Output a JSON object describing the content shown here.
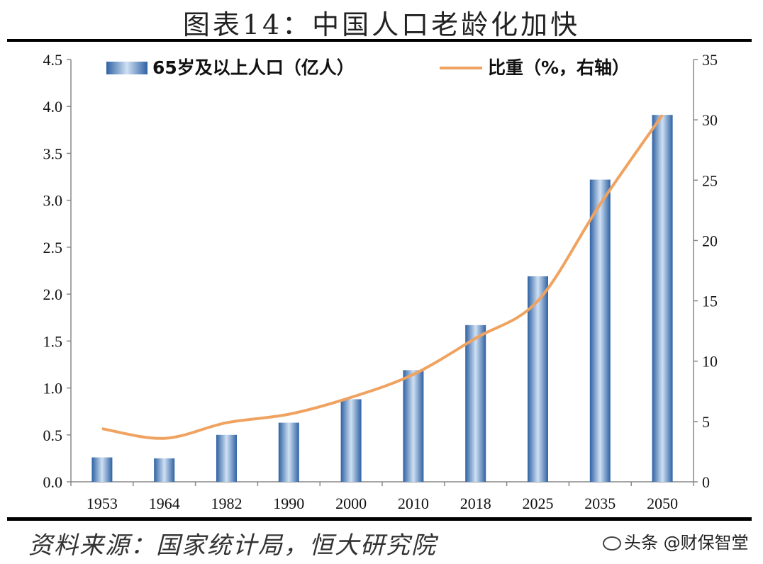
{
  "header": {
    "title": "图表14：中国人口老龄化加快"
  },
  "footer": {
    "source": "资料来源：国家统计局，恒大研究院",
    "watermark": "头条 @财保智堂"
  },
  "colors": {
    "bar_dark": "#2f62a3",
    "bar_light": "#cfe0f3",
    "line": "#f0a360"
  },
  "chart_data": {
    "type": "bar",
    "categories": [
      "1953",
      "1964",
      "1982",
      "1990",
      "2000",
      "2010",
      "2018",
      "2025",
      "2035",
      "2050"
    ],
    "series": [
      {
        "name": "65岁及以上人口（亿人）",
        "type": "bar",
        "axis": "left",
        "values": [
          0.26,
          0.25,
          0.5,
          0.63,
          0.88,
          1.19,
          1.67,
          2.19,
          3.22,
          3.91
        ]
      },
      {
        "name": "比重（%，右轴）",
        "type": "line",
        "axis": "right",
        "values": [
          4.4,
          3.6,
          4.9,
          5.6,
          7.0,
          8.9,
          11.9,
          15.0,
          23.0,
          30.4
        ]
      }
    ],
    "y_left": {
      "lim": [
        0,
        4.5
      ],
      "ticks": [
        "0.0",
        "0.5",
        "1.0",
        "1.5",
        "2.0",
        "2.5",
        "3.0",
        "3.5",
        "4.0",
        "4.5"
      ]
    },
    "y_right": {
      "lim": [
        0,
        35
      ],
      "ticks": [
        "0",
        "5",
        "10",
        "15",
        "20",
        "25",
        "30",
        "35"
      ]
    },
    "legend": {
      "position": "top"
    },
    "grid": false
  }
}
